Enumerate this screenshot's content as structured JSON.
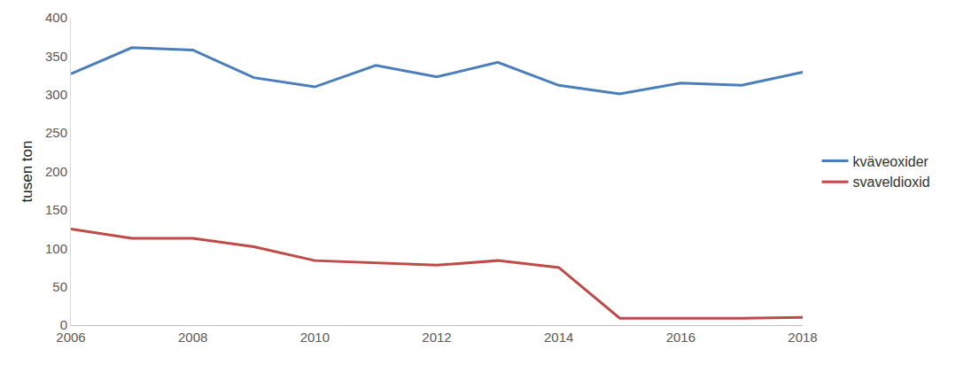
{
  "chart_data": {
    "type": "line",
    "y_label": "tusen ton",
    "x": [
      2006,
      2007,
      2008,
      2009,
      2010,
      2011,
      2012,
      2013,
      2014,
      2015,
      2016,
      2017,
      2018
    ],
    "series": [
      {
        "name": "kväveoxider",
        "color": "#4a7ebb",
        "values": [
          327,
          361,
          358,
          322,
          310,
          338,
          323,
          342,
          312,
          301,
          315,
          312,
          329
        ]
      },
      {
        "name": "svaveldioxid",
        "color": "#be4b48",
        "values": [
          125,
          113,
          113,
          102,
          84,
          81,
          78,
          84,
          75,
          9,
          9,
          9,
          10
        ]
      }
    ],
    "xlim": [
      2006,
      2018
    ],
    "xticks": [
      2006,
      2008,
      2010,
      2012,
      2014,
      2016,
      2018
    ],
    "ylim": [
      0,
      400
    ],
    "yticks": [
      0,
      50,
      100,
      150,
      200,
      250,
      300,
      350,
      400
    ],
    "grid": false,
    "legend": "right"
  }
}
